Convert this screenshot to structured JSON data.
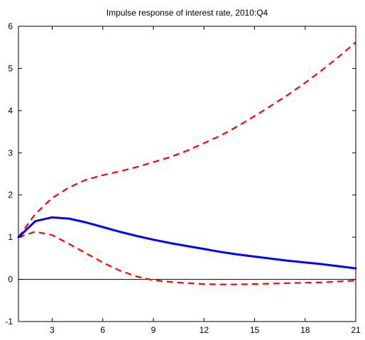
{
  "chart_data": {
    "type": "line",
    "title": "Impulse response of interest rate, 2010:Q4",
    "xlabel": "",
    "ylabel": "",
    "xlim": [
      1,
      21
    ],
    "ylim": [
      -1,
      6
    ],
    "x_ticks": [
      3,
      6,
      9,
      12,
      15,
      18,
      21
    ],
    "y_ticks": [
      -1,
      0,
      1,
      2,
      3,
      4,
      5,
      6
    ],
    "grid": false,
    "legend": "none",
    "zero_line": true,
    "x": [
      1,
      2,
      3,
      4,
      5,
      6,
      7,
      8,
      9,
      10,
      11,
      12,
      13,
      14,
      15,
      16,
      17,
      18,
      19,
      20,
      21
    ],
    "series": [
      {
        "role": "median",
        "color": "#0000ff",
        "line_style": "solid",
        "values": [
          1.0,
          1.38,
          1.47,
          1.44,
          1.35,
          1.24,
          1.13,
          1.03,
          0.94,
          0.86,
          0.79,
          0.72,
          0.65,
          0.59,
          0.54,
          0.49,
          0.44,
          0.4,
          0.36,
          0.31,
          0.26
        ]
      },
      {
        "role": "upper-band",
        "color": "#ff0000",
        "line_style": "dashed",
        "values": [
          1.0,
          1.55,
          1.93,
          2.18,
          2.36,
          2.47,
          2.56,
          2.66,
          2.78,
          2.9,
          3.05,
          3.23,
          3.41,
          3.63,
          3.87,
          4.12,
          4.38,
          4.66,
          4.96,
          5.28,
          5.62
        ]
      },
      {
        "role": "lower-band",
        "color": "#ff0000",
        "line_style": "dashed",
        "values": [
          1.0,
          1.13,
          1.05,
          0.84,
          0.62,
          0.4,
          0.21,
          0.07,
          -0.02,
          -0.06,
          -0.09,
          -0.11,
          -0.12,
          -0.12,
          -0.11,
          -0.1,
          -0.09,
          -0.08,
          -0.07,
          -0.05,
          -0.03
        ]
      }
    ],
    "colors": {
      "axis": "#000000",
      "median": "#0000ff",
      "band": "#ff0000"
    }
  }
}
